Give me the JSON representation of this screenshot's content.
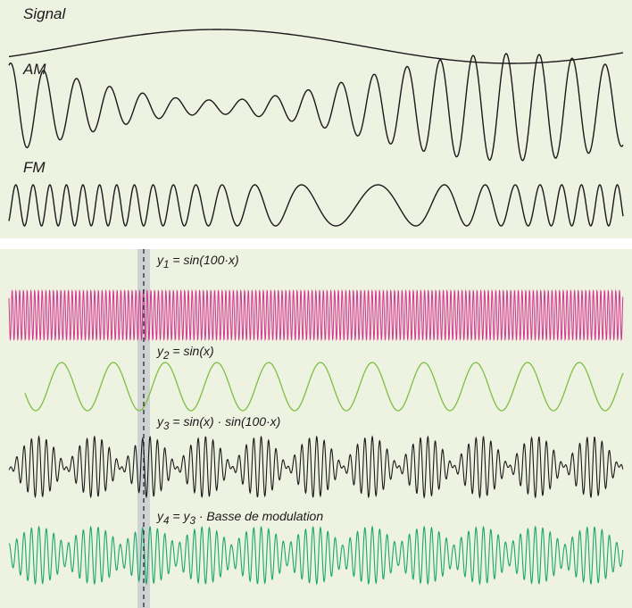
{
  "top_panel": {
    "signal_label": "Signal",
    "am_label": "AM",
    "fm_label": "FM"
  },
  "bottom_panel": {
    "y1_prefix": "y",
    "y1_sub": "1",
    "y1_rest": " = sin(100·x)",
    "y2_prefix": "y",
    "y2_sub": "2",
    "y2_rest": " = sin(x)",
    "y3_prefix": "y",
    "y3_sub": "3",
    "y3_rest": " = sin(x) · sin(100·x)",
    "y4_prefix": "y",
    "y4_sub": "4",
    "y4_mid": " = y",
    "y4_sub2": "3",
    "y4_rest": " · Basse de modulation"
  },
  "colors": {
    "panel_bg": "#eef2e1",
    "signal": "#1a1a1a",
    "y1": "#d6338f",
    "y2": "#7bc043",
    "y3": "#1a1a1a",
    "y4": "#1aa86a",
    "marker_band": "#c8cccf"
  }
}
